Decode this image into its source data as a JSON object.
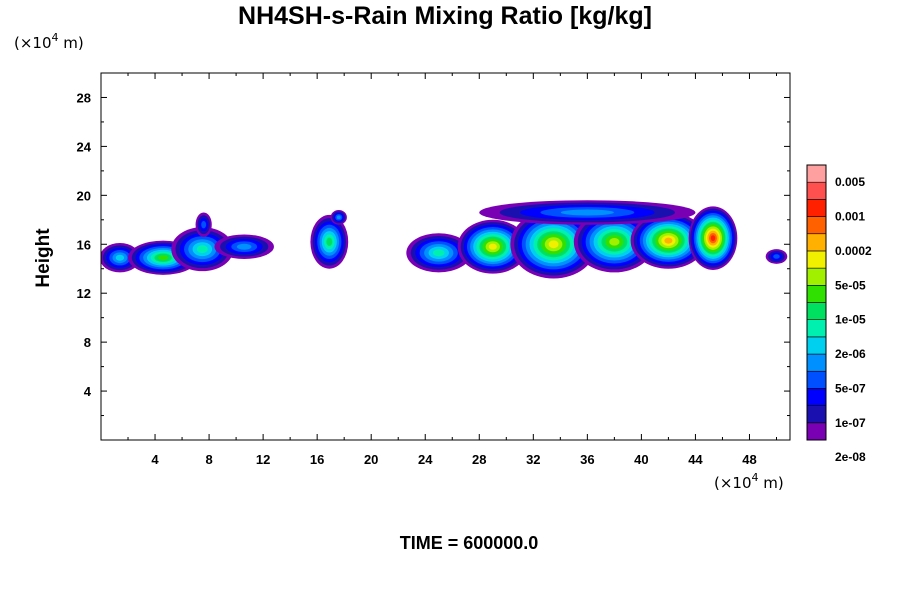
{
  "chart_data": {
    "type": "heatmap",
    "title": "NH4SH-s-Rain Mixing Ratio [kg/kg]",
    "ylabel": "Height",
    "x_unit": "(×10",
    "x_unit_exp": "4",
    "x_unit_tail": " m)",
    "y_unit": "(×10",
    "y_unit_exp": "4",
    "y_unit_tail": " m)",
    "footer": "TIME = 600000.0",
    "xlim": [
      0,
      51
    ],
    "ylim": [
      0,
      30
    ],
    "x_ticks": [
      4,
      8,
      12,
      16,
      20,
      24,
      28,
      32,
      36,
      40,
      44,
      48
    ],
    "y_ticks": [
      4,
      8,
      12,
      16,
      20,
      24,
      28
    ],
    "colorbar_labels": [
      "0.005",
      "0.001",
      "0.0002",
      "5e-05",
      "1e-05",
      "2e-06",
      "5e-07",
      "1e-07",
      "2e-08"
    ],
    "colorbar_colors": [
      "#7a00b4",
      "#1a10b0",
      "#0000ff",
      "#0050ff",
      "#0090ff",
      "#00d0f0",
      "#00f0b0",
      "#00e060",
      "#30e000",
      "#a0f000",
      "#f0f000",
      "#ffb000",
      "#ff6000",
      "#ff2000",
      "#ff5050",
      "#ffa0a0"
    ],
    "regions": [
      {
        "cx": 1.4,
        "cy": 14.9,
        "rx": 1.5,
        "ry": 1.2,
        "level": 5
      },
      {
        "cx": 4.6,
        "cy": 14.9,
        "rx": 2.6,
        "ry": 1.4,
        "level": 8
      },
      {
        "cx": 7.5,
        "cy": 15.6,
        "rx": 2.3,
        "ry": 1.8,
        "level": 6
      },
      {
        "cx": 10.6,
        "cy": 15.8,
        "rx": 2.2,
        "ry": 1.0,
        "level": 4
      },
      {
        "cx": 7.6,
        "cy": 17.6,
        "rx": 0.6,
        "ry": 1.0,
        "level": 3
      },
      {
        "cx": 16.9,
        "cy": 16.2,
        "rx": 1.4,
        "ry": 2.2,
        "level": 7
      },
      {
        "cx": 17.6,
        "cy": 18.2,
        "rx": 0.6,
        "ry": 0.6,
        "level": 4
      },
      {
        "cx": 25.0,
        "cy": 15.3,
        "rx": 2.4,
        "ry": 1.6,
        "level": 6
      },
      {
        "cx": 29.0,
        "cy": 15.8,
        "rx": 2.6,
        "ry": 2.2,
        "level": 10
      },
      {
        "cx": 33.5,
        "cy": 16.0,
        "rx": 3.2,
        "ry": 2.8,
        "level": 10
      },
      {
        "cx": 38.0,
        "cy": 16.2,
        "rx": 3.0,
        "ry": 2.5,
        "level": 9
      },
      {
        "cx": 42.0,
        "cy": 16.3,
        "rx": 2.8,
        "ry": 2.3,
        "level": 11
      },
      {
        "cx": 45.3,
        "cy": 16.5,
        "rx": 1.8,
        "ry": 2.6,
        "level": 13
      },
      {
        "cx": 36.0,
        "cy": 18.6,
        "rx": 8.0,
        "ry": 1.0,
        "level": 4
      },
      {
        "cx": 50.0,
        "cy": 15.0,
        "rx": 0.8,
        "ry": 0.6,
        "level": 3
      }
    ]
  }
}
